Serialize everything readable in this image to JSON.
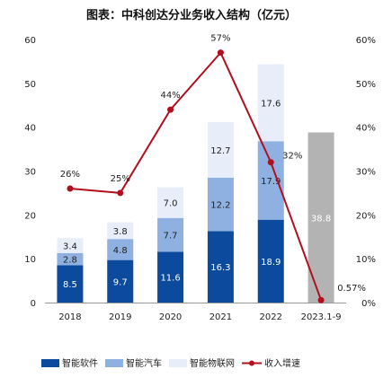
{
  "chart_data": {
    "type": "bar",
    "title": "图表：中科创达分业务收入结构（亿元）",
    "categories": [
      "2018",
      "2019",
      "2020",
      "2021",
      "2022",
      "2023.1-9"
    ],
    "series": [
      {
        "name": "智能软件",
        "color": "#0b4a9c",
        "values": [
          8.5,
          9.7,
          11.6,
          16.3,
          18.9,
          null
        ]
      },
      {
        "name": "智能汽车",
        "color": "#8eb1e2",
        "values": [
          2.8,
          4.8,
          7.7,
          12.2,
          17.9,
          null
        ]
      },
      {
        "name": "智能物联网",
        "color": "#e7eef9",
        "values": [
          3.4,
          3.8,
          7.0,
          12.7,
          17.6,
          null
        ]
      }
    ],
    "total_2023": {
      "category": "2023.1-9",
      "value": 38.8,
      "label": "38.8",
      "color": "#b3b3b3"
    },
    "line": {
      "name": "收入增速",
      "color": "#b20f1e",
      "axis": "right",
      "values": [
        26,
        25,
        44,
        57,
        32,
        0.57
      ],
      "labels": [
        "26%",
        "25%",
        "44%",
        "57%",
        "32%",
        "0.57%"
      ]
    },
    "left_axis": {
      "ylim": [
        0,
        60
      ],
      "ticks": [
        "0",
        "10",
        "20",
        "30",
        "40",
        "50",
        "60"
      ]
    },
    "right_axis": {
      "ylim": [
        0,
        60
      ],
      "ticks": [
        "0%",
        "10%",
        "20%",
        "30%",
        "40%",
        "50%",
        "60%"
      ]
    },
    "legend": {
      "position": "bottom",
      "items": [
        {
          "name": "智能软件",
          "kind": "box",
          "color": "#0b4a9c"
        },
        {
          "name": "智能汽车",
          "kind": "box",
          "color": "#8eb1e2"
        },
        {
          "name": "智能物联网",
          "kind": "box",
          "color": "#e7eef9"
        },
        {
          "name": "收入增速",
          "kind": "line",
          "color": "#b20f1e"
        }
      ]
    },
    "grid": false
  }
}
